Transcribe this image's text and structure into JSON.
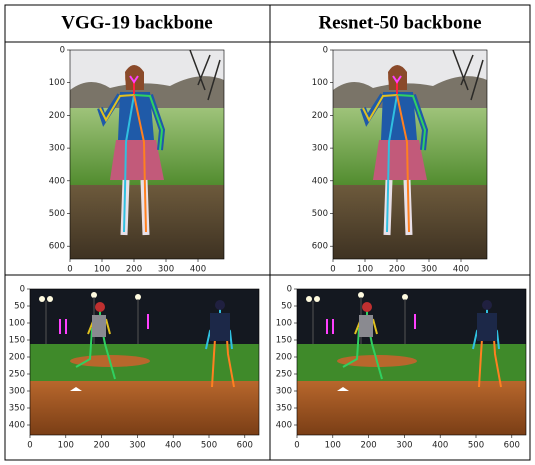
{
  "table": {
    "headers": [
      "VGG-19  backbone",
      "Resnet-50  backbone"
    ],
    "rows": [
      [
        {
          "xticks": [
            0,
            100,
            200,
            300,
            400
          ],
          "yticks": [
            0,
            100,
            200,
            300,
            400,
            500,
            600
          ]
        },
        {
          "xticks": [
            0,
            100,
            200,
            300,
            400
          ],
          "yticks": [
            0,
            100,
            200,
            300,
            400,
            500,
            600
          ]
        }
      ],
      [
        {
          "xticks": [
            0,
            100,
            200,
            300,
            400,
            500,
            600
          ],
          "yticks": [
            0,
            50,
            100,
            150,
            200,
            250,
            300,
            350,
            400
          ]
        },
        {
          "xticks": [
            0,
            100,
            200,
            300,
            400,
            500,
            600
          ],
          "yticks": [
            0,
            50,
            100,
            150,
            200,
            250,
            300,
            350,
            400
          ]
        }
      ]
    ]
  }
}
